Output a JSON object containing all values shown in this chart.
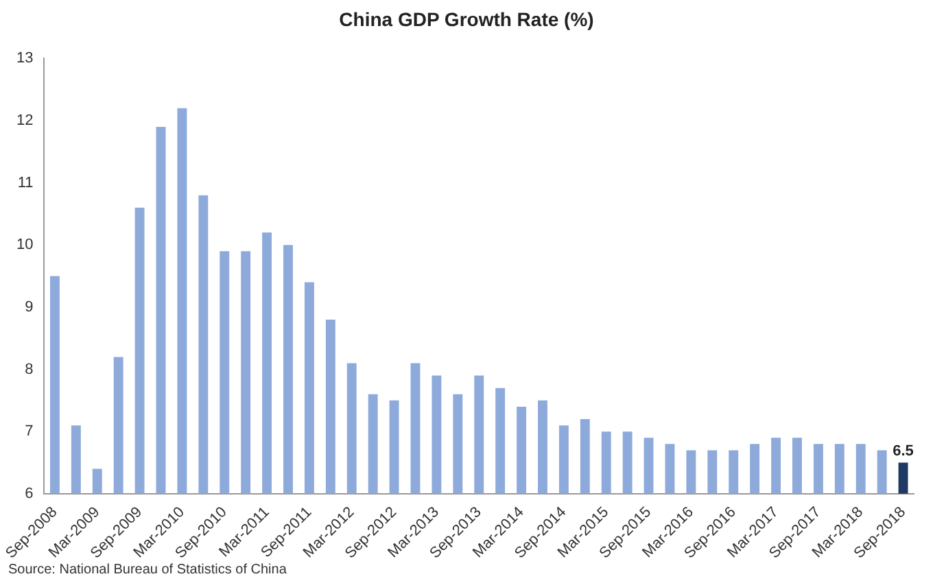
{
  "chart_data": {
    "type": "bar",
    "title": "China GDP Growth Rate (%)",
    "categories": [
      "Sep-2008",
      null,
      "Mar-2009",
      null,
      "Sep-2009",
      null,
      "Mar-2010",
      null,
      "Sep-2010",
      null,
      "Mar-2011",
      null,
      "Sep-2011",
      null,
      "Mar-2012",
      null,
      "Sep-2012",
      null,
      "Mar-2013",
      null,
      "Sep-2013",
      null,
      "Mar-2014",
      null,
      "Sep-2014",
      null,
      "Mar-2015",
      null,
      "Sep-2015",
      null,
      "Mar-2016",
      null,
      "Sep-2016",
      null,
      "Mar-2017",
      null,
      "Sep-2017",
      null,
      "Mar-2018",
      null,
      "Sep-2018"
    ],
    "values": [
      9.5,
      7.1,
      6.4,
      8.2,
      10.6,
      11.9,
      12.2,
      10.8,
      9.9,
      9.9,
      10.2,
      10.0,
      9.4,
      8.8,
      8.1,
      7.6,
      7.5,
      8.1,
      7.9,
      7.6,
      7.9,
      7.7,
      7.4,
      7.5,
      7.1,
      7.2,
      7.0,
      7.0,
      6.9,
      6.8,
      6.7,
      6.7,
      6.7,
      6.8,
      6.9,
      6.9,
      6.8,
      6.8,
      6.8,
      6.7,
      6.5
    ],
    "colors": [
      "#8eaadb",
      "#8eaadb",
      "#8eaadb",
      "#8eaadb",
      "#8eaadb",
      "#8eaadb",
      "#8eaadb",
      "#8eaadb",
      "#8eaadb",
      "#8eaadb",
      "#8eaadb",
      "#8eaadb",
      "#8eaadb",
      "#8eaadb",
      "#8eaadb",
      "#8eaadb",
      "#8eaadb",
      "#8eaadb",
      "#8eaadb",
      "#8eaadb",
      "#8eaadb",
      "#8eaadb",
      "#8eaadb",
      "#8eaadb",
      "#8eaadb",
      "#8eaadb",
      "#8eaadb",
      "#8eaadb",
      "#8eaadb",
      "#8eaadb",
      "#8eaadb",
      "#8eaadb",
      "#8eaadb",
      "#8eaadb",
      "#8eaadb",
      "#8eaadb",
      "#8eaadb",
      "#8eaadb",
      "#8eaadb",
      "#8eaadb",
      "#1f3864"
    ],
    "value_labels": [
      null,
      null,
      null,
      null,
      null,
      null,
      null,
      null,
      null,
      null,
      null,
      null,
      null,
      null,
      null,
      null,
      null,
      null,
      null,
      null,
      null,
      null,
      null,
      null,
      null,
      null,
      null,
      null,
      null,
      null,
      null,
      null,
      null,
      null,
      null,
      null,
      null,
      null,
      null,
      null,
      "6.5"
    ],
    "ylim": [
      6,
      13
    ],
    "yticks": [
      6,
      7,
      8,
      9,
      10,
      11,
      12,
      13
    ],
    "grid": false,
    "annotations": [
      "Source: National Bureau of Statistics of China"
    ]
  }
}
